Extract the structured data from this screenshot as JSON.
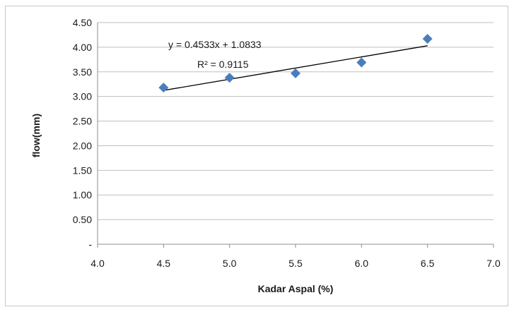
{
  "chart_data": {
    "type": "scatter",
    "title": "",
    "xlabel": "Kadar Aspal (%)",
    "ylabel": "flow(mm)",
    "xlim": [
      4.0,
      7.0
    ],
    "ylim": [
      0,
      4.5
    ],
    "x_ticks": [
      "4.0",
      "4.5",
      "5.0",
      "5.5",
      "6.0",
      "6.5",
      "7.0"
    ],
    "y_ticks": [
      "-",
      "0.50",
      "1.00",
      "1.50",
      "2.00",
      "2.50",
      "3.00",
      "3.50",
      "4.00",
      "4.50"
    ],
    "grid": "horizontal",
    "legend": "none",
    "series": [
      {
        "x": [
          4.5,
          5.0,
          5.5,
          6.0,
          6.5
        ],
        "y": [
          3.18,
          3.38,
          3.47,
          3.69,
          4.17
        ],
        "color": "#4a7ebb",
        "marker": "diamond"
      }
    ],
    "trendline": {
      "type": "linear",
      "slope": 0.4533,
      "intercept": 1.0833,
      "x_range": [
        4.5,
        6.5
      ],
      "color": "#000000",
      "equation_label": "y = 0.4533x + 1.0833",
      "r2_label": "R² = 0.9115"
    }
  }
}
